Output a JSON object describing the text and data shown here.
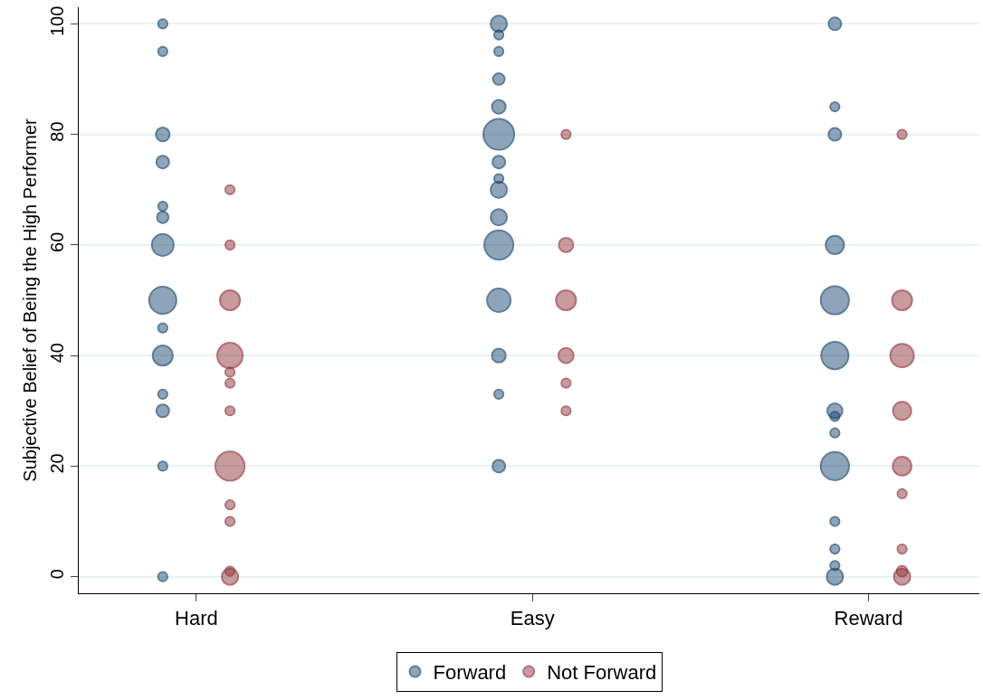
{
  "chart_data": {
    "type": "bubble",
    "ylabel": "Subjective Belief of Being the High Performer",
    "categories": [
      "Hard",
      "Easy",
      "Reward"
    ],
    "ylim": [
      -3,
      103
    ],
    "yticks": [
      0,
      20,
      40,
      60,
      80,
      100
    ],
    "grid": "y",
    "legend": "bottom",
    "series": [
      {
        "name": "Forward",
        "color": "#1a476f",
        "x": [
          "Hard",
          "Hard",
          "Hard",
          "Hard",
          "Hard",
          "Hard",
          "Hard",
          "Hard",
          "Hard",
          "Hard",
          "Hard",
          "Hard",
          "Hard",
          "Hard",
          "Easy",
          "Easy",
          "Easy",
          "Easy",
          "Easy",
          "Easy",
          "Easy",
          "Easy",
          "Easy",
          "Easy",
          "Easy",
          "Easy",
          "Easy",
          "Easy",
          "Easy",
          "Reward",
          "Reward",
          "Reward",
          "Reward",
          "Reward",
          "Reward",
          "Reward",
          "Reward",
          "Reward",
          "Reward",
          "Reward",
          "Reward",
          "Reward",
          "Reward"
        ],
        "values": [
          100,
          95,
          80,
          75,
          67,
          65,
          60,
          50,
          45,
          40,
          33,
          30,
          20,
          0,
          100,
          98,
          95,
          90,
          85,
          80,
          75,
          72,
          70,
          65,
          60,
          50,
          40,
          33,
          20,
          100,
          85,
          80,
          60,
          50,
          40,
          30,
          29,
          26,
          20,
          10,
          5,
          2,
          0
        ],
        "sizes": [
          0.09,
          0.09,
          0.2,
          0.17,
          0.09,
          0.14,
          0.5,
          0.78,
          0.09,
          0.42,
          0.09,
          0.17,
          0.09,
          0.09,
          0.28,
          0.09,
          0.09,
          0.14,
          0.2,
          1,
          0.17,
          0.09,
          0.28,
          0.28,
          0.89,
          0.58,
          0.2,
          0.09,
          0.17,
          0.17,
          0.09,
          0.17,
          0.35,
          0.84,
          0.78,
          0.24,
          0.09,
          0.09,
          0.84,
          0.09,
          0.09,
          0.09,
          0.28
        ]
      },
      {
        "name": "Not Forward",
        "color": "#90353b",
        "x": [
          "Hard",
          "Hard",
          "Hard",
          "Hard",
          "Hard",
          "Hard",
          "Hard",
          "Hard",
          "Hard",
          "Hard",
          "Hard",
          "Hard",
          "Easy",
          "Easy",
          "Easy",
          "Easy",
          "Easy",
          "Easy",
          "Reward",
          "Reward",
          "Reward",
          "Reward",
          "Reward",
          "Reward",
          "Reward",
          "Reward",
          "Reward"
        ],
        "values": [
          70,
          60,
          50,
          40,
          37,
          35,
          30,
          20,
          13,
          10,
          1,
          0,
          80,
          60,
          50,
          40,
          35,
          30,
          80,
          50,
          40,
          30,
          20,
          15,
          5,
          1,
          0
        ],
        "sizes": [
          0.09,
          0.09,
          0.42,
          0.68,
          0.09,
          0.09,
          0.09,
          0.89,
          0.09,
          0.09,
          0.09,
          0.28,
          0.09,
          0.22,
          0.42,
          0.24,
          0.09,
          0.09,
          0.09,
          0.42,
          0.58,
          0.35,
          0.37,
          0.09,
          0.09,
          0.12,
          0.28
        ]
      }
    ]
  }
}
